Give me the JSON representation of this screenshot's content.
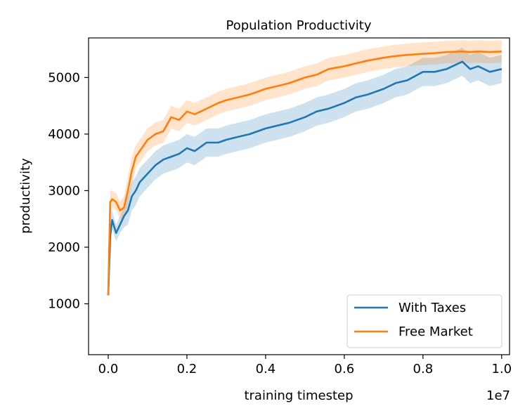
{
  "chart_data": {
    "type": "line",
    "title": "Population Productivity",
    "xlabel": "training timestep",
    "ylabel": "productivity",
    "x_scale_label": "1e7",
    "xlim": [
      -0.05,
      1.02
    ],
    "ylim": [
      100,
      5700
    ],
    "xticks": [
      0.0,
      0.2,
      0.4,
      0.6,
      0.8,
      1.0
    ],
    "xtick_labels": [
      "0.0",
      "0.2",
      "0.4",
      "0.6",
      "0.8",
      "1.0"
    ],
    "yticks": [
      1000,
      2000,
      3000,
      4000,
      5000
    ],
    "ytick_labels": [
      "1000",
      "2000",
      "3000",
      "4000",
      "5000"
    ],
    "grid": false,
    "legend_position": "lower-right",
    "series": [
      {
        "name": "With Taxes",
        "color": "#1f77b4",
        "x": [
          0.0,
          0.005,
          0.01,
          0.02,
          0.03,
          0.04,
          0.05,
          0.06,
          0.07,
          0.08,
          0.1,
          0.12,
          0.14,
          0.16,
          0.18,
          0.2,
          0.22,
          0.25,
          0.28,
          0.3,
          0.33,
          0.36,
          0.4,
          0.43,
          0.46,
          0.5,
          0.53,
          0.56,
          0.6,
          0.63,
          0.66,
          0.7,
          0.73,
          0.76,
          0.8,
          0.83,
          0.86,
          0.9,
          0.92,
          0.94,
          0.97,
          1.0
        ],
        "y": [
          1150,
          2200,
          2480,
          2250,
          2400,
          2550,
          2650,
          2900,
          3000,
          3150,
          3300,
          3450,
          3550,
          3600,
          3650,
          3750,
          3700,
          3850,
          3850,
          3900,
          3950,
          4000,
          4100,
          4150,
          4200,
          4300,
          4400,
          4450,
          4550,
          4650,
          4700,
          4800,
          4900,
          4950,
          5100,
          5100,
          5150,
          5280,
          5150,
          5200,
          5100,
          5150
        ],
        "band": [
          0,
          500,
          150,
          150,
          150,
          200,
          250,
          250,
          250,
          250,
          250,
          250,
          250,
          250,
          250,
          250,
          250,
          250,
          250,
          250,
          250,
          250,
          250,
          250,
          250,
          250,
          250,
          250,
          250,
          250,
          250,
          250,
          250,
          250,
          250,
          250,
          250,
          250,
          250,
          250,
          250,
          250
        ]
      },
      {
        "name": "Free Market",
        "color": "#ff7f0e",
        "x": [
          0.0,
          0.005,
          0.01,
          0.02,
          0.03,
          0.04,
          0.05,
          0.06,
          0.07,
          0.08,
          0.1,
          0.12,
          0.14,
          0.16,
          0.18,
          0.2,
          0.22,
          0.25,
          0.28,
          0.3,
          0.33,
          0.36,
          0.4,
          0.43,
          0.46,
          0.5,
          0.53,
          0.56,
          0.6,
          0.63,
          0.66,
          0.7,
          0.73,
          0.76,
          0.8,
          0.83,
          0.86,
          0.9,
          0.92,
          0.94,
          0.97,
          1.0
        ],
        "y": [
          1150,
          2800,
          2850,
          2800,
          2650,
          2700,
          3000,
          3350,
          3600,
          3700,
          3900,
          4000,
          4050,
          4300,
          4250,
          4400,
          4350,
          4450,
          4550,
          4600,
          4650,
          4700,
          4800,
          4850,
          4900,
          5000,
          5050,
          5150,
          5200,
          5250,
          5300,
          5350,
          5380,
          5400,
          5420,
          5430,
          5450,
          5460,
          5450,
          5460,
          5450,
          5460
        ],
        "band": [
          0,
          200,
          150,
          150,
          150,
          200,
          250,
          250,
          200,
          200,
          200,
          200,
          200,
          200,
          200,
          200,
          200,
          200,
          200,
          200,
          200,
          200,
          200,
          200,
          200,
          200,
          200,
          200,
          200,
          200,
          200,
          200,
          200,
          200,
          200,
          200,
          200,
          200,
          200,
          200,
          200,
          200
        ]
      }
    ]
  }
}
